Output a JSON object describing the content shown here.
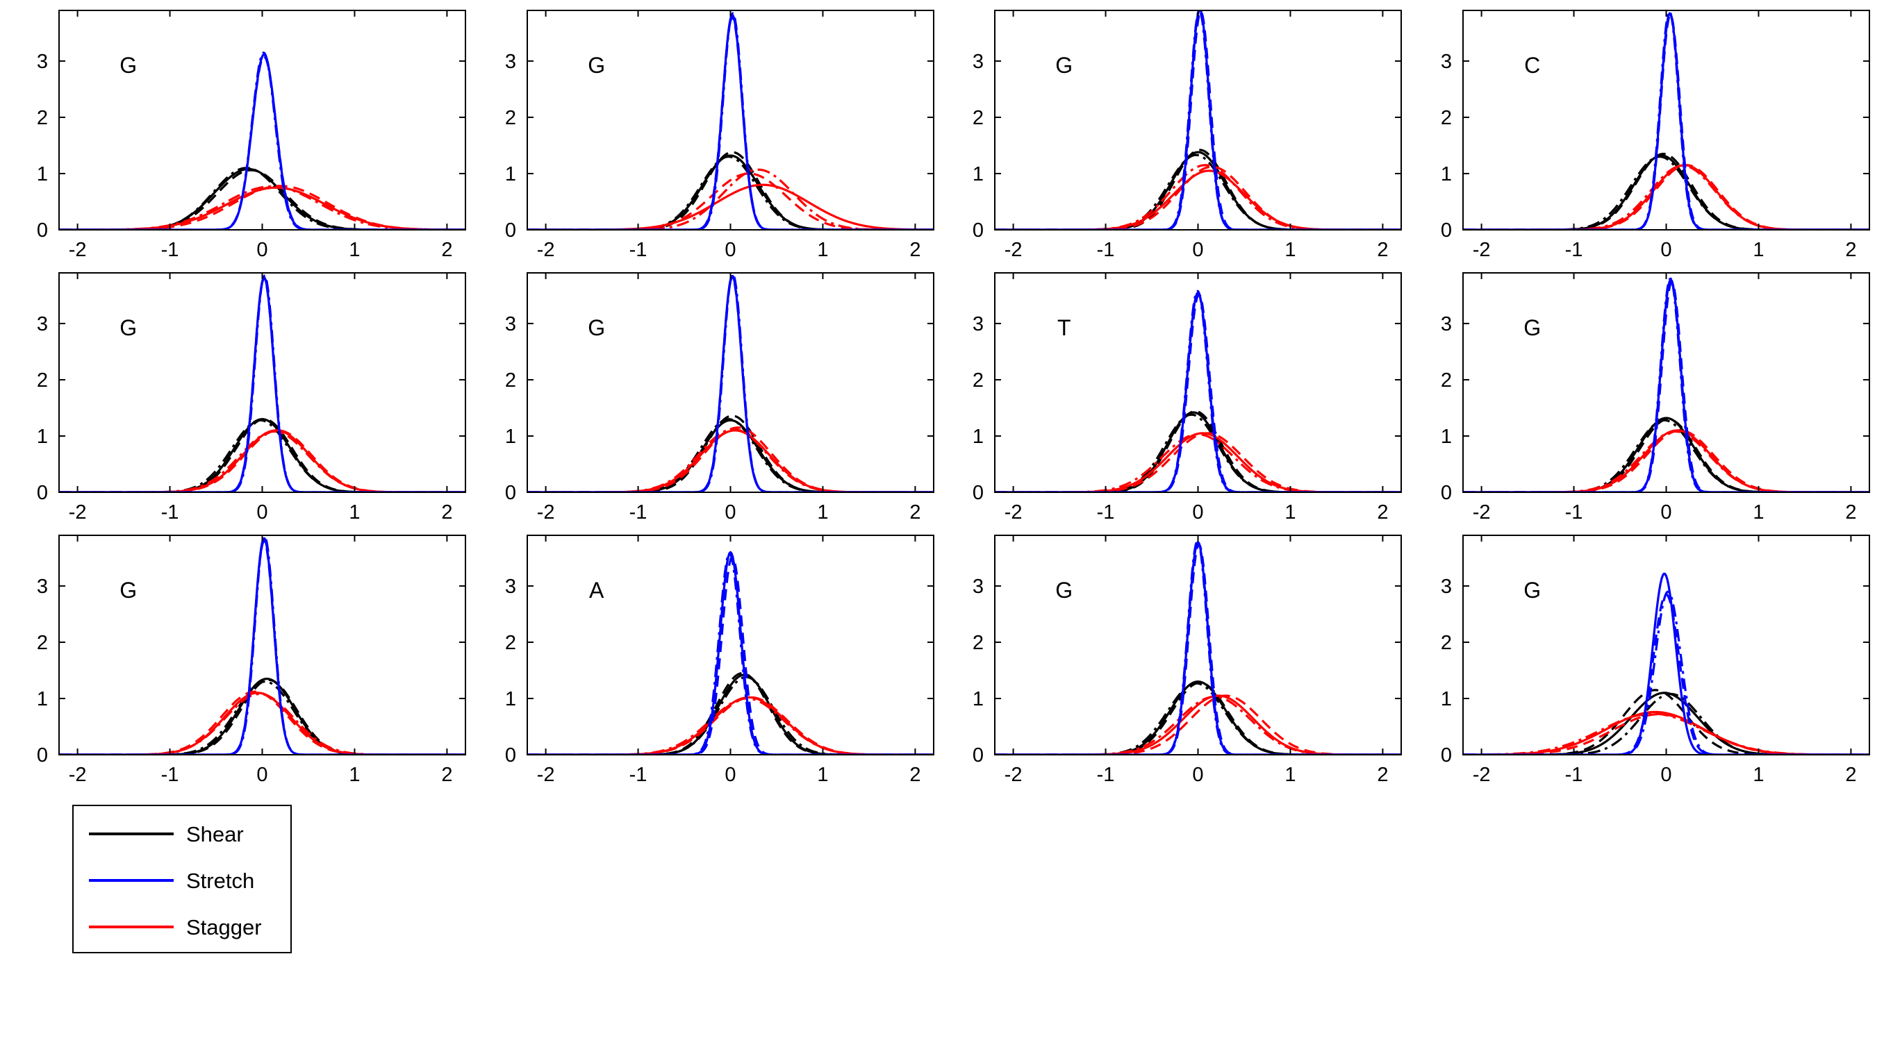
{
  "chart_data": {
    "type": "line",
    "layout": {
      "rows": 3,
      "cols": 4
    },
    "xlim": [
      -2.2,
      2.2
    ],
    "ylim": [
      0,
      3.9
    ],
    "xticks": [
      -2,
      -1,
      0,
      1,
      2
    ],
    "yticks": [
      0,
      1,
      2,
      3
    ],
    "grid": false,
    "legend": {
      "position": "below-bottom-left",
      "entries": [
        {
          "name": "Shear",
          "color": "#000000"
        },
        {
          "name": "Stretch",
          "color": "#0000ff"
        },
        {
          "name": "Stagger",
          "color": "#ff0000"
        }
      ]
    },
    "series_colors": {
      "Shear": "#000000",
      "Stretch": "#0000ff",
      "Stagger": "#ff0000"
    },
    "line_styles": [
      "solid",
      "dashed",
      "dashdot"
    ],
    "note": "",
    "panels": [
      {
        "label": "G",
        "curves": {
          "Shear": [
            [
              -0.15,
              0.37,
              1.08
            ],
            [
              -0.12,
              0.37,
              1.06
            ],
            [
              -0.17,
              0.36,
              1.1
            ]
          ],
          "Stretch": [
            [
              0.02,
              0.128,
              3.12
            ],
            [
              0.02,
              0.13,
              3.08
            ],
            [
              0.015,
              0.126,
              3.15
            ]
          ],
          "Stagger": [
            [
              0.15,
              0.53,
              0.75
            ],
            [
              0.2,
              0.51,
              0.78
            ],
            [
              0.1,
              0.52,
              0.77
            ]
          ]
        }
      },
      {
        "label": "G",
        "curves": {
          "Shear": [
            [
              0.0,
              0.3,
              1.32
            ],
            [
              0.02,
              0.29,
              1.38
            ],
            [
              -0.02,
              0.3,
              1.3
            ]
          ],
          "Stretch": [
            [
              0.02,
              0.105,
              3.82
            ],
            [
              0.02,
              0.107,
              3.78
            ],
            [
              0.025,
              0.104,
              3.85
            ]
          ],
          "Stagger": [
            [
              0.35,
              0.5,
              0.8
            ],
            [
              0.2,
              0.4,
              1.0
            ],
            [
              0.3,
              0.38,
              1.07
            ]
          ]
        }
      },
      {
        "label": "G",
        "curves": {
          "Shear": [
            [
              0.0,
              0.29,
              1.38
            ],
            [
              0.02,
              0.28,
              1.42
            ],
            [
              -0.02,
              0.3,
              1.33
            ]
          ],
          "Stretch": [
            [
              0.02,
              0.1,
              3.92
            ],
            [
              0.03,
              0.102,
              3.88
            ],
            [
              0.015,
              0.101,
              3.9
            ]
          ],
          "Stagger": [
            [
              0.12,
              0.38,
              1.05
            ],
            [
              0.15,
              0.36,
              1.12
            ],
            [
              0.08,
              0.37,
              1.15
            ]
          ]
        }
      },
      {
        "label": "C",
        "curves": {
          "Shear": [
            [
              -0.05,
              0.3,
              1.32
            ],
            [
              -0.03,
              0.3,
              1.35
            ],
            [
              -0.07,
              0.31,
              1.3
            ]
          ],
          "Stretch": [
            [
              0.04,
              0.1,
              3.85
            ],
            [
              0.045,
              0.102,
              3.82
            ],
            [
              0.035,
              0.1,
              3.88
            ]
          ],
          "Stagger": [
            [
              0.2,
              0.34,
              1.15
            ],
            [
              0.22,
              0.34,
              1.15
            ],
            [
              0.18,
              0.35,
              1.14
            ]
          ]
        }
      },
      {
        "label": "G",
        "curves": {
          "Shear": [
            [
              0.0,
              0.3,
              1.3
            ],
            [
              0.02,
              0.3,
              1.3
            ],
            [
              -0.02,
              0.31,
              1.28
            ]
          ],
          "Stretch": [
            [
              0.02,
              0.104,
              3.82
            ],
            [
              0.02,
              0.105,
              3.8
            ],
            [
              0.025,
              0.103,
              3.85
            ]
          ],
          "Stagger": [
            [
              0.15,
              0.36,
              1.1
            ],
            [
              0.17,
              0.36,
              1.1
            ],
            [
              0.13,
              0.37,
              1.08
            ]
          ]
        }
      },
      {
        "label": "G",
        "curves": {
          "Shear": [
            [
              0.0,
              0.3,
              1.28
            ],
            [
              0.02,
              0.29,
              1.36
            ],
            [
              -0.02,
              0.3,
              1.3
            ]
          ],
          "Stretch": [
            [
              0.02,
              0.103,
              3.85
            ],
            [
              0.02,
              0.104,
              3.82
            ],
            [
              0.025,
              0.102,
              3.88
            ]
          ],
          "Stagger": [
            [
              0.05,
              0.37,
              1.1
            ],
            [
              0.08,
              0.36,
              1.15
            ],
            [
              0.03,
              0.37,
              1.12
            ]
          ]
        }
      },
      {
        "label": "T",
        "curves": {
          "Shear": [
            [
              -0.05,
              0.28,
              1.42
            ],
            [
              -0.03,
              0.28,
              1.44
            ],
            [
              -0.07,
              0.29,
              1.38
            ]
          ],
          "Stretch": [
            [
              0.0,
              0.112,
              3.55
            ],
            [
              0.01,
              0.113,
              3.52
            ],
            [
              -0.005,
              0.111,
              3.58
            ]
          ],
          "Stagger": [
            [
              0.05,
              0.38,
              1.05
            ],
            [
              0.1,
              0.38,
              1.05
            ],
            [
              0.0,
              0.39,
              1.03
            ]
          ]
        }
      },
      {
        "label": "G",
        "curves": {
          "Shear": [
            [
              0.0,
              0.3,
              1.32
            ],
            [
              0.02,
              0.3,
              1.3
            ],
            [
              -0.02,
              0.31,
              1.28
            ]
          ],
          "Stretch": [
            [
              0.05,
              0.105,
              3.78
            ],
            [
              0.06,
              0.106,
              3.74
            ],
            [
              0.045,
              0.104,
              3.8
            ]
          ],
          "Stagger": [
            [
              0.12,
              0.36,
              1.1
            ],
            [
              0.15,
              0.36,
              1.1
            ],
            [
              0.1,
              0.37,
              1.08
            ]
          ]
        }
      },
      {
        "label": "G",
        "curves": {
          "Shear": [
            [
              0.05,
              0.3,
              1.35
            ],
            [
              0.07,
              0.3,
              1.33
            ],
            [
              0.03,
              0.31,
              1.3
            ]
          ],
          "Stretch": [
            [
              0.02,
              0.104,
              3.85
            ],
            [
              0.02,
              0.105,
              3.8
            ],
            [
              0.025,
              0.103,
              3.88
            ]
          ],
          "Stagger": [
            [
              -0.05,
              0.36,
              1.1
            ],
            [
              -0.08,
              0.36,
              1.12
            ],
            [
              -0.03,
              0.37,
              1.08
            ]
          ]
        }
      },
      {
        "label": "A",
        "curves": {
          "Shear": [
            [
              0.15,
              0.28,
              1.42
            ],
            [
              0.13,
              0.28,
              1.45
            ],
            [
              0.17,
              0.29,
              1.38
            ]
          ],
          "Stretch": [
            [
              0.0,
              0.111,
              3.6
            ],
            [
              0.02,
              0.113,
              3.52
            ],
            [
              -0.01,
              0.112,
              3.58
            ]
          ],
          "Stagger": [
            [
              0.2,
              0.39,
              1.02
            ],
            [
              0.22,
              0.39,
              1.02
            ],
            [
              0.18,
              0.4,
              1.0
            ]
          ]
        }
      },
      {
        "label": "G",
        "curves": {
          "Shear": [
            [
              0.0,
              0.3,
              1.3
            ],
            [
              0.02,
              0.3,
              1.28
            ],
            [
              -0.02,
              0.31,
              1.27
            ]
          ],
          "Stretch": [
            [
              0.0,
              0.105,
              3.78
            ],
            [
              0.01,
              0.106,
              3.74
            ],
            [
              -0.005,
              0.104,
              3.8
            ]
          ],
          "Stagger": [
            [
              0.22,
              0.38,
              1.05
            ],
            [
              0.3,
              0.38,
              1.05
            ],
            [
              0.18,
              0.39,
              1.03
            ]
          ]
        }
      },
      {
        "label": "G",
        "curves": {
          "Shear": [
            [
              -0.02,
              0.36,
              1.1
            ],
            [
              -0.12,
              0.34,
              1.15
            ],
            [
              0.05,
              0.33,
              1.08
            ]
          ],
          "Stretch": [
            [
              -0.02,
              0.124,
              3.22
            ],
            [
              0.0,
              0.14,
              2.85
            ],
            [
              0.02,
              0.138,
              2.9
            ]
          ],
          "Stagger": [
            [
              -0.12,
              0.52,
              0.76
            ],
            [
              -0.08,
              0.5,
              0.72
            ],
            [
              -0.15,
              0.55,
              0.73
            ]
          ]
        }
      }
    ]
  }
}
